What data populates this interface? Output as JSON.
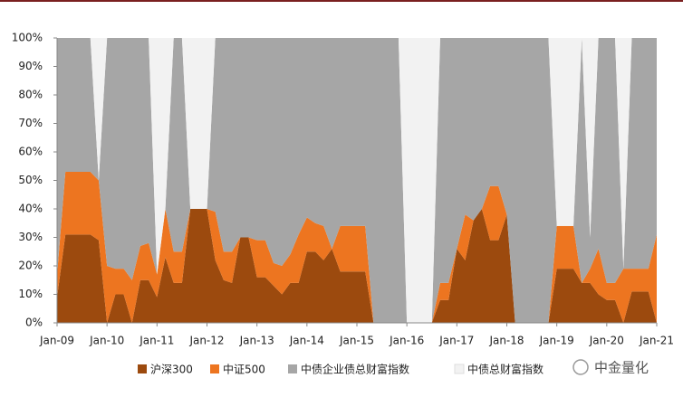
{
  "chart_data": {
    "type": "stacked_area",
    "x": [
      0,
      2,
      4,
      6,
      8,
      10,
      12,
      14,
      16,
      18,
      20,
      22,
      24,
      26,
      28,
      30,
      32,
      34,
      36,
      38,
      40,
      42,
      44,
      46,
      48,
      50,
      52,
      54,
      56,
      58,
      60,
      62,
      64,
      66,
      68,
      70,
      72,
      74,
      76,
      78,
      80,
      82,
      84,
      86,
      88,
      90,
      92,
      94,
      96,
      98,
      100,
      102,
      104,
      106,
      108,
      110,
      112,
      114,
      116,
      118,
      120,
      122,
      124,
      126,
      128,
      130,
      132,
      134,
      136,
      138,
      140,
      142,
      144
    ],
    "xlim": [
      0,
      144
    ],
    "xticks": [
      {
        "value": 0,
        "label": "Jan-09"
      },
      {
        "value": 12,
        "label": "Jan-10"
      },
      {
        "value": 24,
        "label": "Jan-11"
      },
      {
        "value": 36,
        "label": "Jan-12"
      },
      {
        "value": 48,
        "label": "Jan-13"
      },
      {
        "value": 60,
        "label": "Jan-14"
      },
      {
        "value": 72,
        "label": "Jan-15"
      },
      {
        "value": 84,
        "label": "Jan-16"
      },
      {
        "value": 96,
        "label": "Jan-17"
      },
      {
        "value": 108,
        "label": "Jan-18"
      },
      {
        "value": 120,
        "label": "Jan-19"
      },
      {
        "value": 132,
        "label": "Jan-20"
      },
      {
        "value": 144,
        "label": "Jan-21"
      }
    ],
    "ylim": [
      0,
      100
    ],
    "yticks": [
      {
        "value": 0,
        "label": "0%"
      },
      {
        "value": 10,
        "label": "10%"
      },
      {
        "value": 20,
        "label": "20%"
      },
      {
        "value": 30,
        "label": "30%"
      },
      {
        "value": 40,
        "label": "40%"
      },
      {
        "value": 50,
        "label": "50%"
      },
      {
        "value": 60,
        "label": "60%"
      },
      {
        "value": 70,
        "label": "70%"
      },
      {
        "value": 80,
        "label": "80%"
      },
      {
        "value": 90,
        "label": "90%"
      },
      {
        "value": 100,
        "label": "100%"
      }
    ],
    "series": [
      {
        "name": "沪深300",
        "color": "#9c4a0e",
        "values": [
          9,
          31,
          31,
          31,
          31,
          29,
          0,
          10,
          10,
          0,
          15,
          15,
          9,
          23,
          14,
          14,
          40,
          40,
          40,
          22,
          15,
          14,
          30,
          30,
          16,
          16,
          13,
          10,
          14,
          14,
          25,
          25,
          22,
          26,
          18,
          18,
          18,
          18,
          0,
          0,
          0,
          0,
          0,
          0,
          0,
          0,
          8,
          8,
          26,
          22,
          36,
          40,
          29,
          29,
          38,
          0,
          0,
          0,
          0,
          0,
          19,
          19,
          19,
          14,
          14,
          10,
          8,
          8,
          0,
          11,
          11,
          11,
          0
        ]
      },
      {
        "name": "中证500",
        "color": "#ed7520",
        "values": [
          8,
          22,
          22,
          22,
          22,
          21,
          20,
          9,
          9,
          15,
          12,
          13,
          8,
          17,
          11,
          11,
          0,
          0,
          0,
          17,
          10,
          11,
          0,
          0,
          13,
          13,
          8,
          10,
          10,
          17,
          12,
          10,
          12,
          0,
          16,
          16,
          16,
          16,
          0,
          0,
          0,
          0,
          0,
          0,
          0,
          0,
          6,
          6,
          0,
          16,
          0,
          0,
          19,
          19,
          0,
          0,
          0,
          0,
          0,
          0,
          15,
          15,
          15,
          0,
          5,
          16,
          6,
          6,
          19,
          8,
          8,
          8,
          31
        ]
      },
      {
        "name": "中债企业债总财富指数",
        "color": "#a6a6a6",
        "values": [
          83,
          47,
          47,
          47,
          47,
          0,
          80,
          81,
          81,
          85,
          73,
          72,
          0,
          0,
          75,
          75,
          0,
          0,
          0,
          61,
          75,
          75,
          70,
          70,
          71,
          71,
          79,
          80,
          76,
          69,
          63,
          65,
          66,
          74,
          66,
          66,
          66,
          66,
          100,
          100,
          100,
          100,
          0,
          0,
          0,
          0,
          86,
          86,
          74,
          62,
          64,
          60,
          52,
          52,
          62,
          100,
          100,
          100,
          100,
          100,
          0,
          0,
          0,
          86,
          11,
          74,
          86,
          86,
          0,
          81,
          81,
          81,
          69
        ]
      },
      {
        "name": "中债总财富指数",
        "color": "#f2f2f2",
        "values": [
          0,
          0,
          0,
          0,
          0,
          50,
          0,
          0,
          0,
          0,
          0,
          0,
          83,
          60,
          0,
          0,
          60,
          60,
          60,
          0,
          0,
          0,
          0,
          0,
          0,
          0,
          0,
          0,
          0,
          0,
          0,
          0,
          0,
          0,
          0,
          0,
          0,
          0,
          0,
          0,
          0,
          0,
          100,
          100,
          100,
          100,
          0,
          0,
          0,
          0,
          0,
          0,
          0,
          0,
          0,
          0,
          0,
          0,
          0,
          0,
          66,
          66,
          66,
          0,
          70,
          0,
          0,
          0,
          81,
          0,
          0,
          0,
          0
        ]
      }
    ],
    "watermark": "中金量化"
  }
}
